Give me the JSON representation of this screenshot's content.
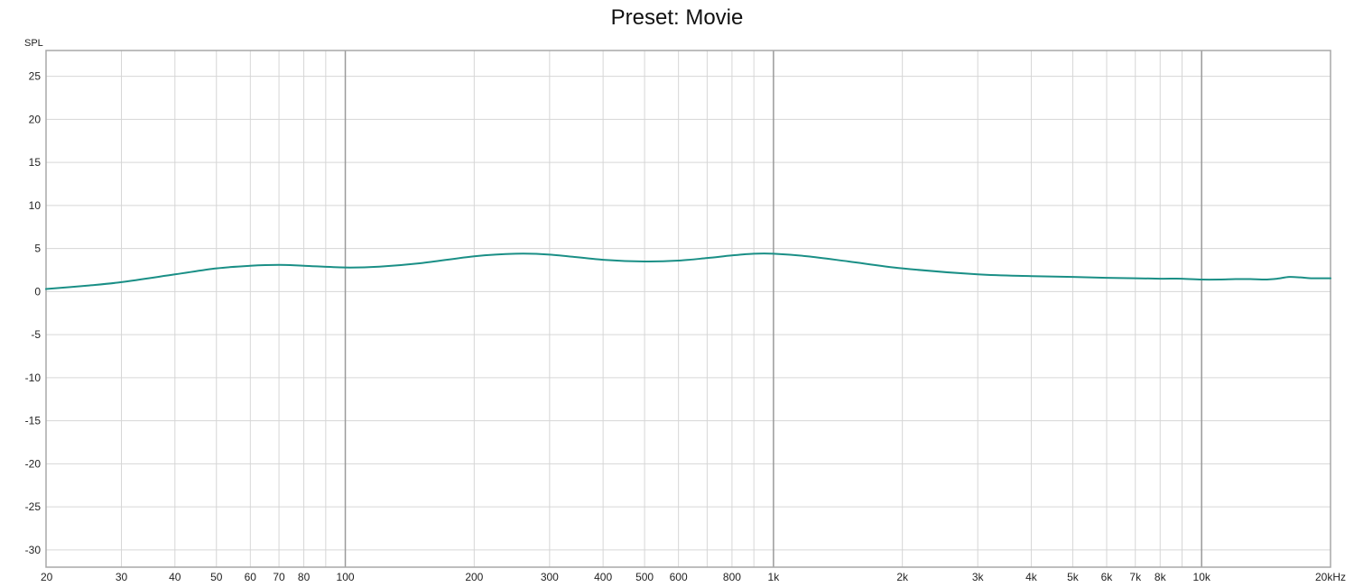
{
  "chart_data": {
    "type": "line",
    "title": "Preset: Movie",
    "ylabel": "SPL",
    "xunit": "kHz",
    "xscale": "log",
    "xlim": [
      20,
      20000
    ],
    "ylim": [
      -32,
      28
    ],
    "grid": true,
    "yticks": [
      25,
      20,
      15,
      10,
      5,
      0,
      -5,
      -10,
      -15,
      -20,
      -25,
      -30
    ],
    "xticks": [
      {
        "v": 20,
        "label": "20"
      },
      {
        "v": 30,
        "label": "30"
      },
      {
        "v": 40,
        "label": "40"
      },
      {
        "v": 50,
        "label": "50"
      },
      {
        "v": 60,
        "label": "60"
      },
      {
        "v": 70,
        "label": "70"
      },
      {
        "v": 80,
        "label": "80"
      },
      {
        "v": 90,
        "label": ""
      },
      {
        "v": 100,
        "label": "100"
      },
      {
        "v": 200,
        "label": "200"
      },
      {
        "v": 300,
        "label": "300"
      },
      {
        "v": 400,
        "label": "400"
      },
      {
        "v": 500,
        "label": "500"
      },
      {
        "v": 600,
        "label": "600"
      },
      {
        "v": 700,
        "label": ""
      },
      {
        "v": 800,
        "label": "800"
      },
      {
        "v": 900,
        "label": ""
      },
      {
        "v": 1000,
        "label": "1k"
      },
      {
        "v": 2000,
        "label": "2k"
      },
      {
        "v": 3000,
        "label": "3k"
      },
      {
        "v": 4000,
        "label": "4k"
      },
      {
        "v": 5000,
        "label": "5k"
      },
      {
        "v": 6000,
        "label": "6k"
      },
      {
        "v": 7000,
        "label": "7k"
      },
      {
        "v": 8000,
        "label": "8k"
      },
      {
        "v": 9000,
        "label": ""
      },
      {
        "v": 10000,
        "label": "10k"
      },
      {
        "v": 20000,
        "label": "20kHz"
      }
    ],
    "major_x": [
      100,
      1000,
      10000
    ],
    "series": [
      {
        "color": "#1a8f86",
        "x": [
          20,
          25,
          30,
          40,
          50,
          60,
          70,
          80,
          100,
          120,
          150,
          200,
          250,
          300,
          400,
          500,
          600,
          700,
          800,
          900,
          1000,
          1200,
          1500,
          2000,
          3000,
          4000,
          5000,
          6000,
          7000,
          8000,
          9000,
          10000,
          11000,
          12000,
          13000,
          14000,
          15000,
          16000,
          17000,
          18000,
          20000
        ],
        "y": [
          0.3,
          0.7,
          1.1,
          2.0,
          2.7,
          3.0,
          3.1,
          3.0,
          2.8,
          2.9,
          3.3,
          4.1,
          4.4,
          4.3,
          3.7,
          3.5,
          3.6,
          3.9,
          4.2,
          4.4,
          4.4,
          4.1,
          3.5,
          2.7,
          2.0,
          1.8,
          1.7,
          1.6,
          1.55,
          1.5,
          1.5,
          1.4,
          1.4,
          1.45,
          1.45,
          1.4,
          1.5,
          1.7,
          1.65,
          1.55,
          1.55
        ]
      }
    ]
  }
}
